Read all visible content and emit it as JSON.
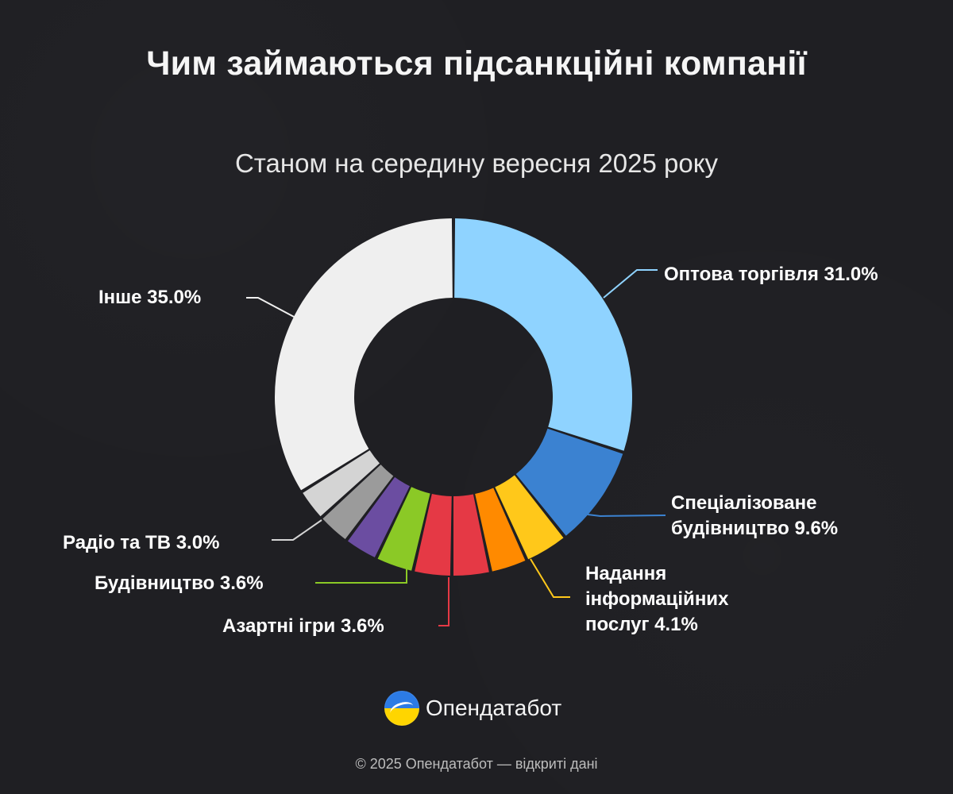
{
  "header": {
    "title": "Чим займаються підсанкційні компанії",
    "subtitle": "Станом на середину вересня 2025 року"
  },
  "chart_data": {
    "type": "pie",
    "variant": "donut",
    "title": "Чим займаються підсанкційні компанії",
    "subtitle": "Станом на середину вересня 2025 року",
    "categories": [
      "Оптова торгівля",
      "Спеціалізоване будівництво",
      "Надання інформаційних послуг",
      "",
      "",
      "Азартні ігри",
      "Будівництво",
      "",
      "",
      "Радіо та ТВ",
      "Інше"
    ],
    "values": [
      31.0,
      9.6,
      4.1,
      3.5,
      3.6,
      3.6,
      3.6,
      3.2,
      3.1,
      3.0,
      35.0
    ],
    "colors": [
      "#8fd3ff",
      "#3b82d1",
      "#ffc81a",
      "#ff8a00",
      "#e53945",
      "#e53945",
      "#8bc926",
      "#6b4da1",
      "#9b9b9b",
      "#d4d4d4",
      "#efefef"
    ],
    "labels": [
      {
        "text": "Оптова торгівля 31.0%",
        "slice": 0,
        "color": "#8fd3ff"
      },
      {
        "text": "Спеціалізоване будівництво 9.6%",
        "slice": 1,
        "color": "#3b82d1"
      },
      {
        "text": "Надання інформаційних послуг 4.1%",
        "slice": 2,
        "color": "#ffc81a"
      },
      {
        "text": "Азартні ігри 3.6%",
        "slice": 5,
        "color": "#e53945"
      },
      {
        "text": "Будівництво 3.6%",
        "slice": 6,
        "color": "#8bc926"
      },
      {
        "text": "Радіо та ТВ 3.0%",
        "slice": 9,
        "color": "#d4d4d4"
      },
      {
        "text": "Інше 35.0%",
        "slice": 10,
        "color": "#efefef"
      }
    ]
  },
  "branding": {
    "logo_icon": "opendatabot-logo-icon",
    "name": "Опендатабот"
  },
  "footer": {
    "text": "© 2025 Опендатабот — відкриті дані"
  }
}
